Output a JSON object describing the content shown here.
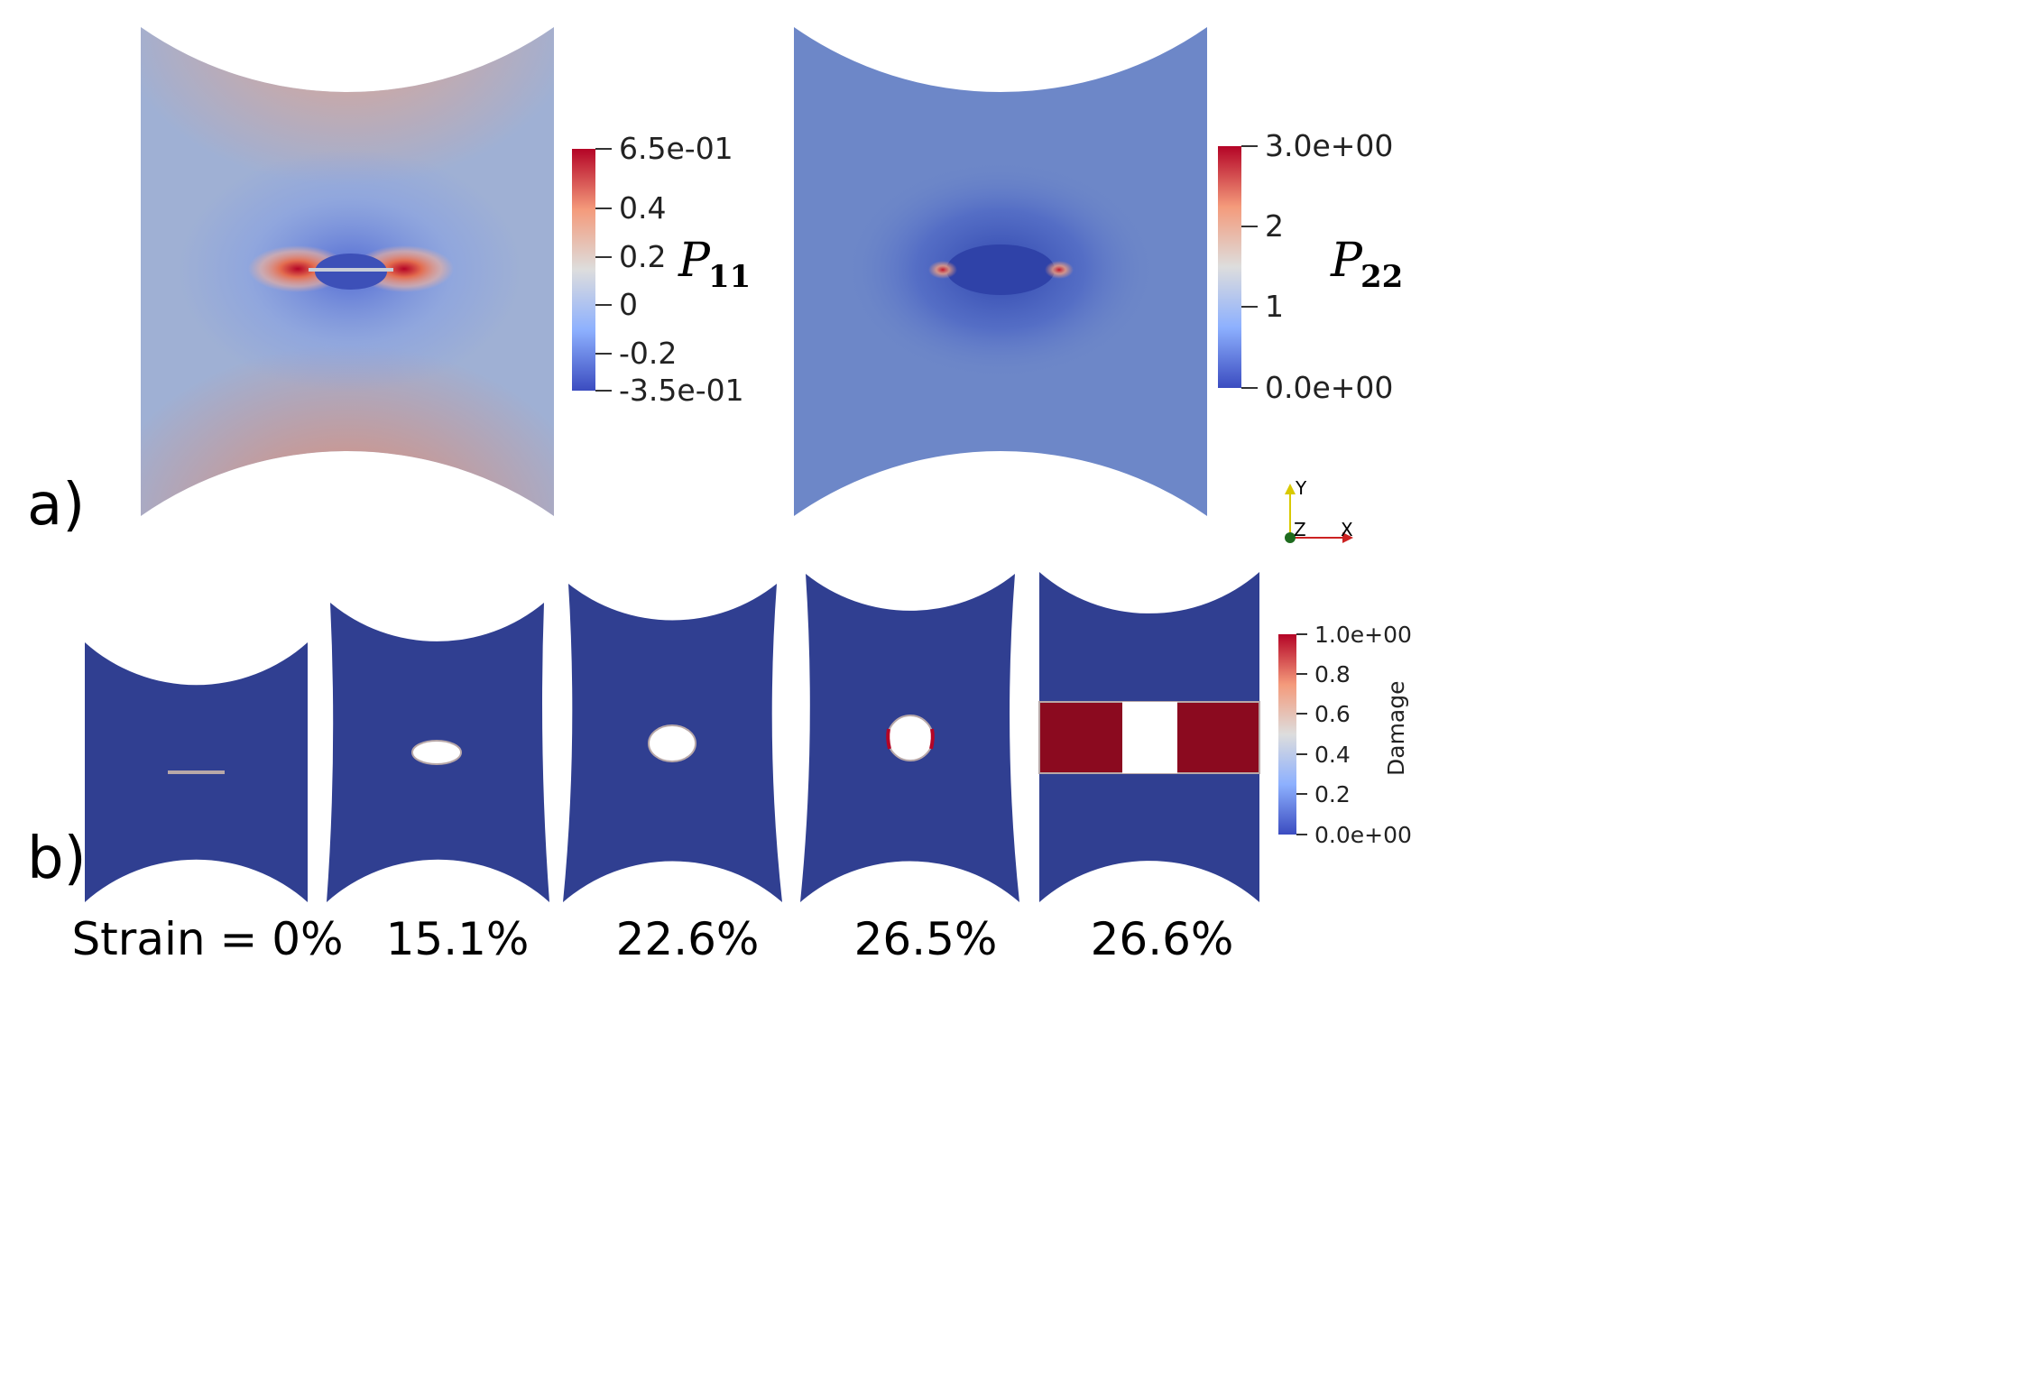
{
  "panel_a": {
    "label": "a)",
    "left_plot": {
      "variable": "P",
      "subscript": "11",
      "colorbar_ticks": [
        "6.5e-01",
        "0.4",
        "0.2",
        "0",
        "-0.2",
        "-3.5e-01"
      ]
    },
    "right_plot": {
      "variable": "P",
      "subscript": "22",
      "colorbar_ticks": [
        "3.0e+00",
        "2",
        "1",
        "0.0e+00"
      ]
    },
    "triad": {
      "y": "Y",
      "z": "Z",
      "x": "X"
    }
  },
  "panel_b": {
    "label": "b)",
    "captions": [
      "Strain = 0%",
      "15.1%",
      "22.6%",
      "26.5%",
      "26.6%"
    ],
    "colorbar_title": "Damage",
    "colorbar_ticks": [
      "1.0e+00",
      "0.8",
      "0.6",
      "0.4",
      "0.2",
      "0.0e+00"
    ]
  },
  "colors": {
    "cool": "#3b4cc0",
    "neutral": "#dddddd",
    "warm": "#b40426",
    "specimen_blue": "#303f91",
    "damage_red": "#8b0a1f"
  }
}
